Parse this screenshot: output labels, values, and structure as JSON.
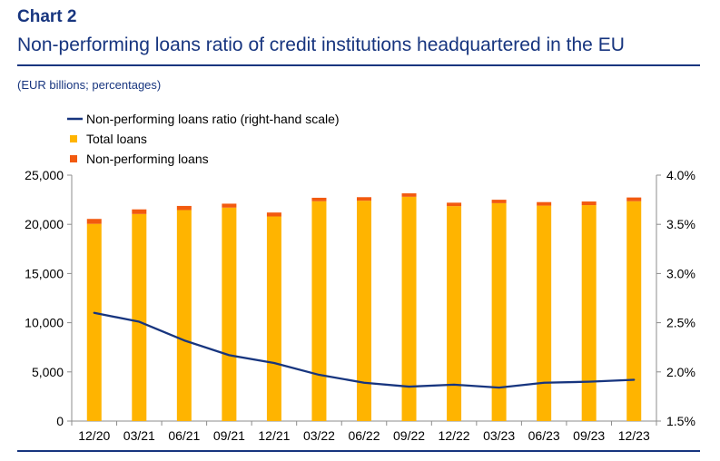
{
  "chart_label": "Chart 2",
  "title": "Non-performing loans ratio of credit institutions headquartered in the EU",
  "subtitle": "(EUR billions; percentages)",
  "colors": {
    "title": "#17357f",
    "total_loans": "#FFB400",
    "non_performing_loans": "#F25A0F",
    "npl_ratio": "#17357f",
    "axis": "#8c8c8c",
    "text": "#000000"
  },
  "legend": {
    "items": [
      {
        "label": "Non-performing loans ratio (right-hand scale)",
        "type": "line",
        "color": "#17357f"
      },
      {
        "label": "Total loans",
        "type": "box",
        "color": "#FFB400"
      },
      {
        "label": "Non-performing loans",
        "type": "box",
        "color": "#F25A0F"
      }
    ]
  },
  "chart_data": {
    "type": "bar",
    "title": "Non-performing loans ratio of credit institutions headquartered in the EU",
    "subtitle": "(EUR billions; percentages)",
    "categories": [
      "12/20",
      "03/21",
      "06/21",
      "09/21",
      "12/21",
      "03/22",
      "06/22",
      "09/22",
      "12/22",
      "03/23",
      "06/23",
      "09/23",
      "12/23"
    ],
    "stacked": true,
    "series": [
      {
        "name": "Total loans",
        "type": "bar",
        "axis": "left",
        "color": "#FFB400",
        "values": [
          20050,
          21050,
          21450,
          21700,
          20800,
          22350,
          22400,
          22800,
          21850,
          22150,
          21900,
          21950,
          22350
        ]
      },
      {
        "name": "Non-performing loans",
        "type": "bar",
        "axis": "left",
        "color": "#F25A0F",
        "values": [
          500,
          470,
          420,
          400,
          400,
          350,
          360,
          350,
          350,
          350,
          360,
          370,
          380
        ]
      },
      {
        "name": "Non-performing loans ratio (right-hand scale)",
        "type": "line",
        "axis": "right",
        "color": "#17357f",
        "values": [
          2.6,
          2.51,
          2.32,
          2.17,
          2.09,
          1.97,
          1.89,
          1.85,
          1.87,
          1.84,
          1.89,
          1.9,
          1.92
        ]
      }
    ],
    "yaxis_left": {
      "min": 0,
      "max": 25000,
      "ticks": [
        0,
        5000,
        10000,
        15000,
        20000,
        25000
      ],
      "tick_labels": [
        "0",
        "5,000",
        "10,000",
        "15,000",
        "20,000",
        "25,000"
      ]
    },
    "yaxis_right": {
      "min": 1.5,
      "max": 4.0,
      "ticks": [
        1.5,
        2.0,
        2.5,
        3.0,
        3.5,
        4.0
      ],
      "tick_labels": [
        "1.5%",
        "2.0%",
        "2.5%",
        "3.0%",
        "3.5%",
        "4.0%"
      ]
    },
    "xlabel": "",
    "ylabel": "",
    "grid": false,
    "legend_position": "top-left"
  }
}
